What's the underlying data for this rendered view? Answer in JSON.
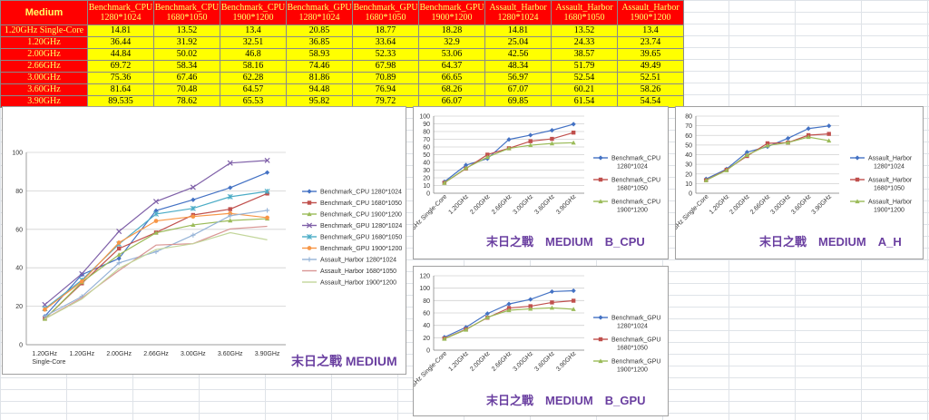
{
  "table": {
    "corner": "Medium",
    "headers": [
      [
        "Benchmark_CPU",
        "1280*1024"
      ],
      [
        "Benchmark_CPU",
        "1680*1050"
      ],
      [
        "Benchmark_CPU",
        "1900*1200"
      ],
      [
        "Benchmark_GPU",
        "1280*1024"
      ],
      [
        "Benchmark_GPU",
        "1680*1050"
      ],
      [
        "Benchmark_GPU",
        "1900*1200"
      ],
      [
        "Assault_Harbor",
        "1280*1024"
      ],
      [
        "Assault_Harbor",
        "1680*1050"
      ],
      [
        "Assault_Harbor",
        "1900*1200"
      ]
    ],
    "rows": [
      {
        "label": "1.20GHz Single-Core",
        "values": [
          "14.81",
          "13.52",
          "13.4",
          "20.85",
          "18.77",
          "18.28",
          "14.81",
          "13.52",
          "13.4"
        ]
      },
      {
        "label": "1.20GHz",
        "values": [
          "36.44",
          "31.92",
          "32.51",
          "36.85",
          "33.64",
          "32.9",
          "25.04",
          "24.33",
          "23.74"
        ]
      },
      {
        "label": "2.00GHz",
        "values": [
          "44.84",
          "50.02",
          "46.8",
          "58.93",
          "52.33",
          "53.06",
          "42.56",
          "38.57",
          "39.65"
        ]
      },
      {
        "label": "2.66GHz",
        "values": [
          "69.72",
          "58.34",
          "58.16",
          "74.46",
          "67.98",
          "64.37",
          "48.34",
          "51.79",
          "49.49"
        ]
      },
      {
        "label": "3.00GHz",
        "values": [
          "75.36",
          "67.46",
          "62.28",
          "81.86",
          "70.89",
          "66.65",
          "56.97",
          "52.54",
          "52.51"
        ]
      },
      {
        "label": "3.60GHz",
        "values": [
          "81.64",
          "70.48",
          "64.57",
          "94.48",
          "76.94",
          "68.26",
          "67.07",
          "60.21",
          "58.26"
        ]
      },
      {
        "label": "3.90GHz",
        "values": [
          "89.535",
          "78.62",
          "65.53",
          "95.82",
          "79.72",
          "66.07",
          "69.85",
          "61.54",
          "54.54"
        ]
      }
    ]
  },
  "chart_data": [
    {
      "type": "line",
      "categories": [
        "1.20GHz Single-Core",
        "1.20GHz",
        "2.00GHz",
        "2.66GHz",
        "3.00GHz",
        "3.60GHz",
        "3.90GHz"
      ],
      "ylim": [
        0,
        100
      ],
      "yticks": [
        "0",
        "20",
        "40",
        "60",
        "80",
        "100"
      ],
      "xticks": [
        "1.20GHz\nSingle-Core",
        "1.20GHz",
        "2.00GHz",
        "2.66GHz",
        "3.00GHz",
        "3.60GHz",
        "3.90GHz"
      ],
      "watermark": "末日之戰 MEDIUM",
      "series": [
        {
          "name": "Benchmark_CPU 1280*1024",
          "color": "#4472c4",
          "marker": "diamond",
          "values": [
            14.81,
            36.44,
            44.84,
            69.72,
            75.36,
            81.64,
            89.535
          ]
        },
        {
          "name": "Benchmark_CPU 1680*1050",
          "color": "#c0504d",
          "marker": "square",
          "values": [
            13.52,
            31.92,
            50.02,
            58.34,
            67.46,
            70.48,
            78.62
          ]
        },
        {
          "name": "Benchmark_CPU 1900*1200",
          "color": "#9bbb59",
          "marker": "triangle",
          "values": [
            13.4,
            32.51,
            46.8,
            58.16,
            62.28,
            64.57,
            65.53
          ]
        },
        {
          "name": "Benchmark_GPU 1280*1024",
          "color": "#7f60a8",
          "marker": "x",
          "values": [
            20.85,
            36.85,
            58.93,
            74.46,
            81.86,
            94.48,
            95.82
          ]
        },
        {
          "name": "Benchmark_GPU 1680*1050",
          "color": "#4bacc6",
          "marker": "star",
          "values": [
            18.77,
            33.64,
            52.33,
            67.98,
            70.89,
            76.94,
            79.72
          ]
        },
        {
          "name": "Benchmark_GPU 1900*1200",
          "color": "#f79646",
          "marker": "circle",
          "values": [
            18.28,
            32.9,
            53.06,
            64.37,
            66.65,
            68.26,
            66.07
          ]
        },
        {
          "name": "Assault_Harbor 1280*1024",
          "color": "#95b3d7",
          "marker": "plus",
          "values": [
            14.81,
            25.04,
            42.56,
            48.34,
            56.97,
            67.07,
            69.85
          ]
        },
        {
          "name": "Assault_Harbor 1680*1050",
          "color": "#d99694",
          "marker": "none",
          "values": [
            13.52,
            24.33,
            38.57,
            51.79,
            52.54,
            60.21,
            61.54
          ]
        },
        {
          "name": "Assault_Harbor 1900*1200",
          "color": "#c3d69b",
          "marker": "none",
          "values": [
            13.4,
            23.74,
            39.65,
            49.49,
            52.51,
            58.26,
            54.54
          ]
        }
      ]
    },
    {
      "type": "line",
      "categories": [
        "1.20GHz Single-Core",
        "1.20GHz",
        "2.00GHz",
        "2.66GHz",
        "3.00GHz",
        "3.60GHz",
        "3.90GHz"
      ],
      "ylim": [
        0,
        100
      ],
      "yticks": [
        "0",
        "10",
        "20",
        "30",
        "40",
        "50",
        "60",
        "70",
        "80",
        "90",
        "100"
      ],
      "watermark": "末日之戰　MEDIUM　B_CPU",
      "series": [
        {
          "name": "Benchmark_CPU 1280*1024",
          "color": "#4472c4",
          "marker": "diamond",
          "values": [
            14.81,
            36.44,
            44.84,
            69.72,
            75.36,
            81.64,
            89.535
          ]
        },
        {
          "name": "Benchmark_CPU 1680*1050",
          "color": "#c0504d",
          "marker": "square",
          "values": [
            13.52,
            31.92,
            50.02,
            58.34,
            67.46,
            70.48,
            78.62
          ]
        },
        {
          "name": "Benchmark_CPU 1900*1200",
          "color": "#9bbb59",
          "marker": "triangle",
          "values": [
            13.4,
            32.51,
            46.8,
            58.16,
            62.28,
            64.57,
            65.53
          ]
        }
      ]
    },
    {
      "type": "line",
      "categories": [
        "1.20GHz Single-Core",
        "1.20GHz",
        "2.00GHz",
        "2.66GHz",
        "3.00GHz",
        "3.60GHz",
        "3.90GHz"
      ],
      "ylim": [
        0,
        80
      ],
      "yticks": [
        "0",
        "10",
        "20",
        "30",
        "40",
        "50",
        "60",
        "70",
        "80"
      ],
      "watermark": "末日之戰　MEDIUM　A_H",
      "series": [
        {
          "name": "Assault_Harbor 1280*1024",
          "color": "#4472c4",
          "marker": "diamond",
          "values": [
            14.81,
            25.04,
            42.56,
            48.34,
            56.97,
            67.07,
            69.85
          ]
        },
        {
          "name": "Assault_Harbor 1680*1050",
          "color": "#c0504d",
          "marker": "square",
          "values": [
            13.52,
            24.33,
            38.57,
            51.79,
            52.54,
            60.21,
            61.54
          ]
        },
        {
          "name": "Assault_Harbor 1900*1200",
          "color": "#9bbb59",
          "marker": "triangle",
          "values": [
            13.4,
            23.74,
            39.65,
            49.49,
            52.51,
            58.26,
            54.54
          ]
        }
      ]
    },
    {
      "type": "line",
      "categories": [
        "1.20GHz Single-Core",
        "1.20GHz",
        "2.00GHz",
        "2.66GHz",
        "3.00GHz",
        "3.60GHz",
        "3.90GHz"
      ],
      "ylim": [
        0,
        120
      ],
      "yticks": [
        "0",
        "20",
        "40",
        "60",
        "80",
        "100",
        "120"
      ],
      "watermark": "末日之戰　MEDIUM　B_GPU",
      "series": [
        {
          "name": "Benchmark_GPU 1280*1024",
          "color": "#4472c4",
          "marker": "diamond",
          "values": [
            20.85,
            36.85,
            58.93,
            74.46,
            81.86,
            94.48,
            95.82
          ]
        },
        {
          "name": "Benchmark_GPU 1680*1050",
          "color": "#c0504d",
          "marker": "square",
          "values": [
            18.77,
            33.64,
            52.33,
            67.98,
            70.89,
            76.94,
            79.72
          ]
        },
        {
          "name": "Benchmark_GPU 1900*1200",
          "color": "#9bbb59",
          "marker": "triangle",
          "values": [
            18.28,
            32.9,
            53.06,
            64.37,
            66.65,
            68.26,
            66.07
          ]
        }
      ]
    }
  ]
}
